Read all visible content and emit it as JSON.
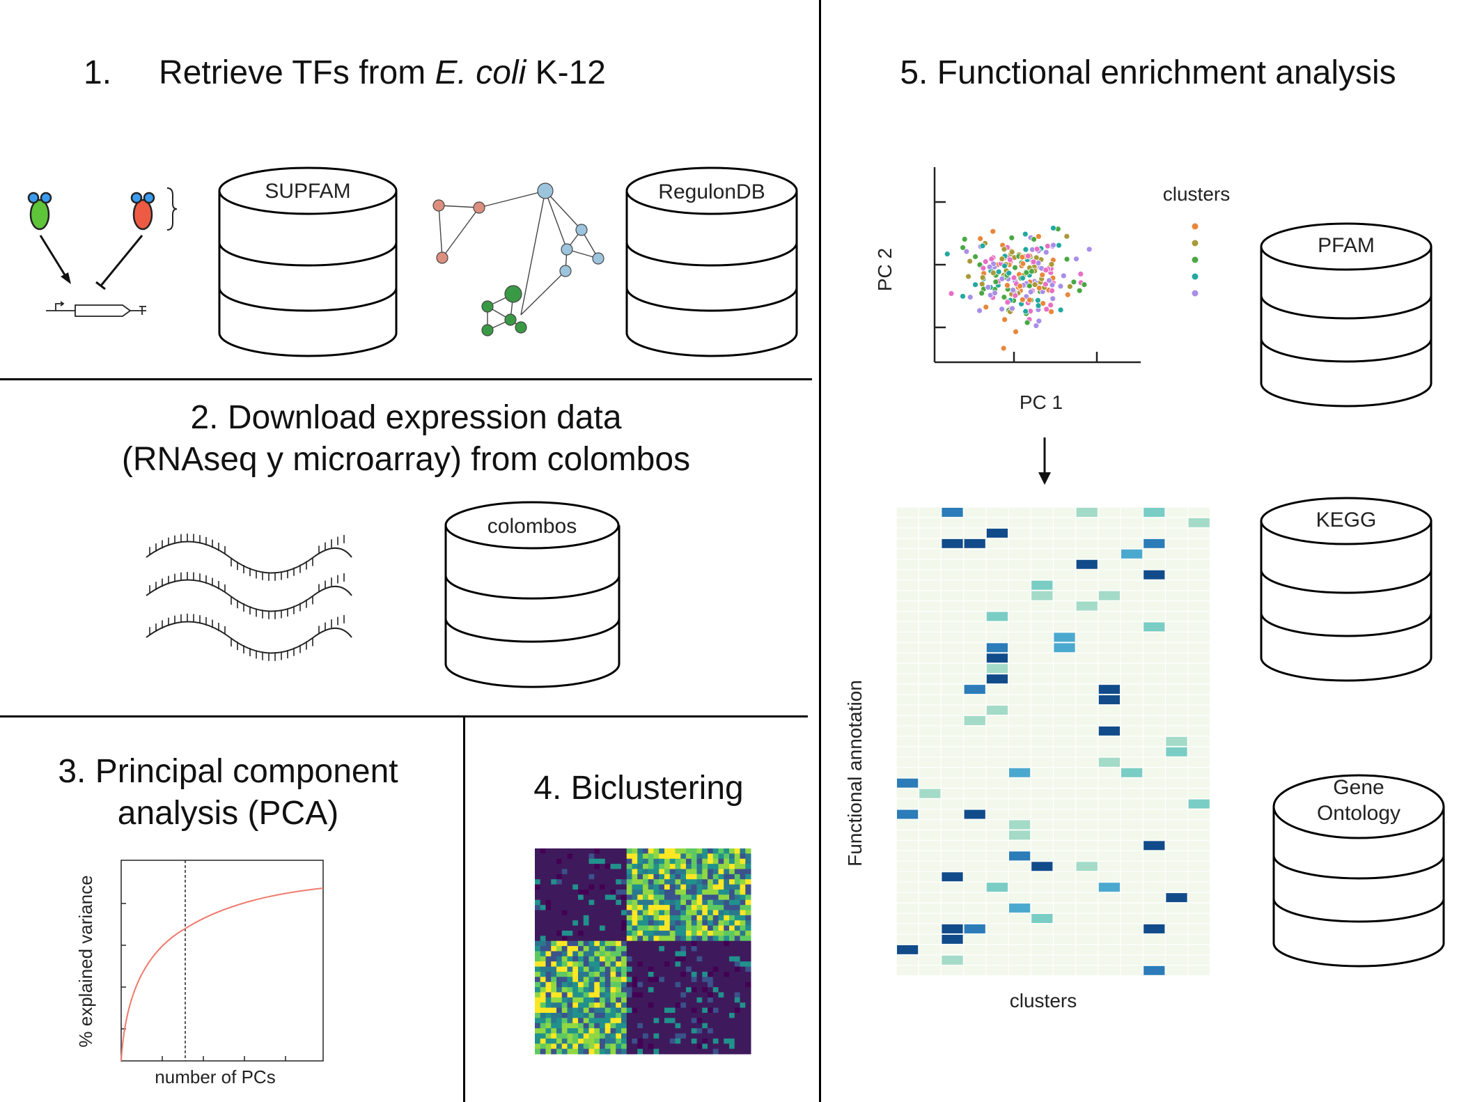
{
  "step1": {
    "title_prefix": "1.",
    "title_a": "Retrieve TFs from ",
    "title_italic": "E. coli",
    "title_b": " K-12"
  },
  "step2": {
    "title_line1": "2. Download expression data",
    "title_line2": "(RNAseq y microarray) from colombos"
  },
  "step3": {
    "title_line1": "3. Principal component",
    "title_line2": "analysis (PCA)",
    "ylabel": "% explained variance",
    "xlabel": "number of PCs"
  },
  "step4": {
    "title": "4. Biclustering"
  },
  "step5": {
    "title": "5. Functional enrichment analysis",
    "scatter_xlabel": "PC 1",
    "scatter_ylabel": "PC 2",
    "legend_title": "clusters",
    "heatmap_xlabel": "clusters",
    "heatmap_ylabel": "Functional annotation"
  },
  "databases": {
    "supfam": "SUPFAM",
    "regulondb": "RegulonDB",
    "colombos": "colombos",
    "pfam": "PFAM",
    "kegg": "KEGG",
    "go_line1": "Gene",
    "go_line2": "Ontology"
  },
  "colors": {
    "tf_green": "#5ec43a",
    "tf_red": "#ee5b44",
    "node_red": "#dd8f7f",
    "node_blue": "#9cc4dd",
    "node_green": "#3a9944",
    "curve": "#f07a6e",
    "cluster_palette": [
      "#e8873a",
      "#a89a38",
      "#4aa844",
      "#22a8a0",
      "#a98ee8",
      "#e86fc4"
    ],
    "heat_scale": [
      "#a3dbc8",
      "#7acdc4",
      "#4ba9cf",
      "#2b7cb8",
      "#114b8a"
    ]
  }
}
